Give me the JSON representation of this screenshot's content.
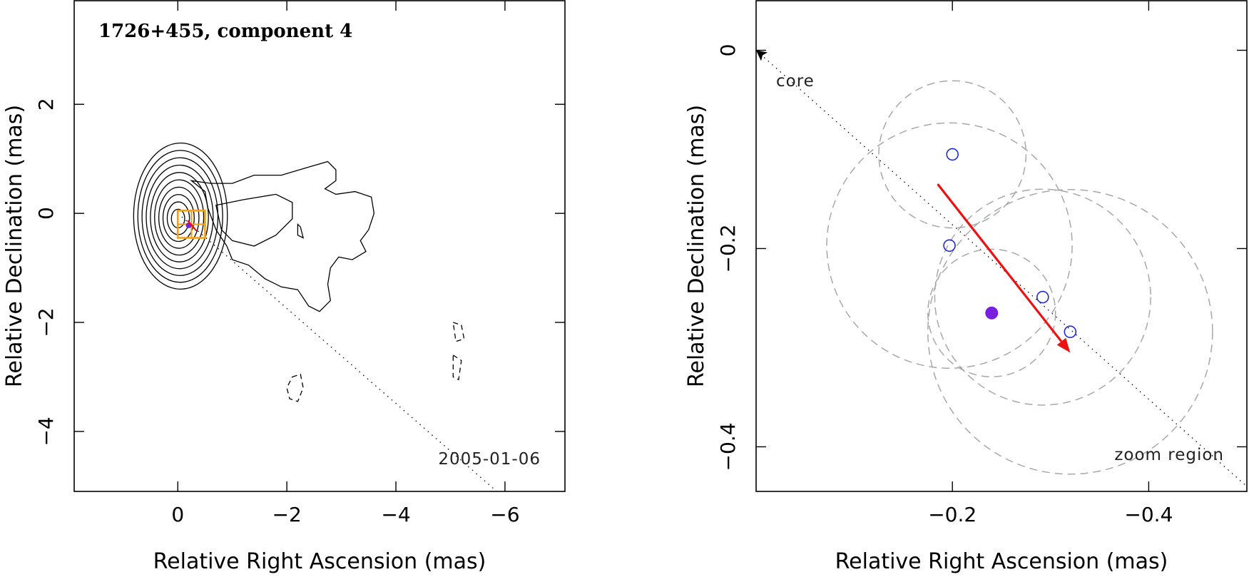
{
  "chart_data": [
    {
      "type": "contour",
      "title": "1726+455, component 4",
      "date_label": "2005-01-06",
      "xlabel": "Relative Right Ascension (mas)",
      "ylabel": "Relative Declination (mas)",
      "xlim": [
        1.9,
        -7.1
      ],
      "ylim": [
        -5.1,
        3.9
      ],
      "x_ticks": [
        0,
        -2,
        -4,
        -6
      ],
      "x_tick_labels": [
        "0",
        "−2",
        "−4",
        "−6"
      ],
      "y_ticks": [
        2,
        0,
        -2,
        -4
      ],
      "y_tick_labels": [
        "2",
        "0",
        "−2",
        "−4"
      ],
      "core_contour_levels": 10,
      "contour_center": [
        0.0,
        -0.1
      ],
      "jet_contour": [
        [
          -0.25,
          0.6
        ],
        [
          -0.6,
          0.55
        ],
        [
          -1.0,
          0.55
        ],
        [
          -1.4,
          0.7
        ],
        [
          -1.9,
          0.7
        ],
        [
          -2.4,
          0.85
        ],
        [
          -2.75,
          0.95
        ],
        [
          -2.9,
          0.8
        ],
        [
          -2.9,
          0.6
        ],
        [
          -2.7,
          0.45
        ],
        [
          -2.9,
          0.35
        ],
        [
          -3.25,
          0.4
        ],
        [
          -3.55,
          0.3
        ],
        [
          -3.6,
          0.0
        ],
        [
          -3.5,
          -0.3
        ],
        [
          -3.35,
          -0.5
        ],
        [
          -3.45,
          -0.7
        ],
        [
          -3.2,
          -0.85
        ],
        [
          -2.95,
          -0.8
        ],
        [
          -2.8,
          -1.0
        ],
        [
          -2.75,
          -1.3
        ],
        [
          -2.8,
          -1.6
        ],
        [
          -2.6,
          -1.8
        ],
        [
          -2.4,
          -1.7
        ],
        [
          -2.2,
          -1.4
        ],
        [
          -1.9,
          -1.35
        ],
        [
          -1.6,
          -1.2
        ],
        [
          -1.3,
          -0.95
        ],
        [
          -1.0,
          -0.85
        ],
        [
          -0.9,
          -0.6
        ],
        [
          -0.7,
          -0.3
        ],
        [
          -0.55,
          0.1
        ],
        [
          -0.5,
          0.4
        ]
      ],
      "second_contour": [
        [
          -0.7,
          0.15
        ],
        [
          -1.2,
          0.25
        ],
        [
          -1.8,
          0.35
        ],
        [
          -2.1,
          0.2
        ],
        [
          -2.1,
          -0.1
        ],
        [
          -1.8,
          -0.4
        ],
        [
          -1.4,
          -0.6
        ],
        [
          -1.0,
          -0.5
        ],
        [
          -0.8,
          -0.3
        ]
      ],
      "negative_contours": [
        [
          [
            -2.1,
            -3.0
          ],
          [
            -2.25,
            -2.95
          ],
          [
            -2.3,
            -3.2
          ],
          [
            -2.2,
            -3.45
          ],
          [
            -2.05,
            -3.4
          ],
          [
            -2.0,
            -3.2
          ]
        ],
        [
          [
            -5.05,
            -2.0
          ],
          [
            -5.2,
            -2.05
          ],
          [
            -5.25,
            -2.3
          ],
          [
            -5.1,
            -2.35
          ]
        ],
        [
          [
            -5.05,
            -2.6
          ],
          [
            -5.2,
            -2.7
          ],
          [
            -5.15,
            -3.05
          ],
          [
            -5.05,
            -3.0
          ]
        ]
      ],
      "small_contour": [
        [
          -2.2,
          -0.2
        ],
        [
          -2.25,
          -0.25
        ],
        [
          -2.3,
          -0.45
        ],
        [
          -2.2,
          -0.4
        ]
      ],
      "grid": false,
      "zoom_box": {
        "x_from": 0.0,
        "x_to": -0.5,
        "y_from": 0.05,
        "y_to": -0.45
      },
      "jet_axis": [
        [
          0,
          0
        ],
        [
          -5.85,
          -5.1
        ]
      ]
    },
    {
      "type": "scatter",
      "xlabel": "Relative Right Ascension (mas)",
      "ylabel": "Relative Declination (mas)",
      "xlim": [
        0.0,
        -0.5
      ],
      "ylim": [
        -0.445,
        0.05
      ],
      "x_ticks": [
        -0.2,
        -0.4
      ],
      "x_tick_labels": [
        "−0.2",
        "−0.4"
      ],
      "y_ticks": [
        0,
        -0.2,
        -0.4
      ],
      "y_tick_labels": [
        "0",
        "−0.2",
        "−0.4"
      ],
      "annotations": [
        "core",
        "zoom region"
      ],
      "points": [
        {
          "x": -0.2,
          "y": -0.105
        },
        {
          "x": -0.197,
          "y": -0.197
        },
        {
          "x": -0.292,
          "y": -0.249
        },
        {
          "x": -0.32,
          "y": -0.284
        }
      ],
      "mean_position": {
        "x": -0.24,
        "y": -0.265
      },
      "error_circles": [
        {
          "x": -0.2,
          "y": -0.105,
          "r": 0.075
        },
        {
          "x": -0.197,
          "y": -0.197,
          "r": 0.125
        },
        {
          "x": -0.292,
          "y": -0.249,
          "r": 0.11
        },
        {
          "x": -0.32,
          "y": -0.284,
          "r": 0.145
        },
        {
          "x": -0.24,
          "y": -0.265,
          "r": 0.065
        }
      ],
      "motion_vector": {
        "x_from": -0.185,
        "y_from": -0.135,
        "x_to": -0.32,
        "y_to": -0.305
      },
      "jet_axis": [
        [
          0,
          0
        ],
        [
          -0.5,
          -0.44
        ]
      ],
      "colors": {
        "points": "#1f2bd6",
        "mean": "#7a1fe0",
        "vector": "#ee1111",
        "circles": "#a8a8a8"
      }
    }
  ]
}
